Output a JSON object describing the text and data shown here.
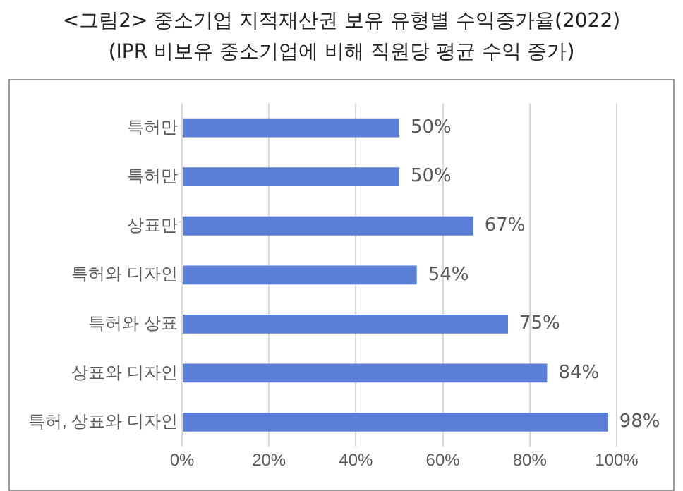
{
  "chart_data": {
    "type": "bar",
    "orientation": "horizontal",
    "title": "<그림2> 중소기업 지적재산권 보유 유형별 수익증가율(2022)",
    "subtitle": "(IPR 비보유 중소기업에 비해 직원당 평균 수익 증가)",
    "categories": [
      "특허만",
      "특허만",
      "상표만",
      "특허와 디자인",
      "특허와 상표",
      "상표와 디자인",
      "특허, 상표와 디자인"
    ],
    "values": [
      50,
      50,
      67,
      54,
      75,
      84,
      98
    ],
    "value_labels": [
      "50%",
      "50%",
      "67%",
      "54%",
      "75%",
      "84%",
      "98%"
    ],
    "color": "#5b7fd6",
    "xlim": [
      0,
      100
    ],
    "xticks": [
      {
        "value": 0,
        "label": "0%"
      },
      {
        "value": 20,
        "label": "20%"
      },
      {
        "value": 40,
        "label": "40%"
      },
      {
        "value": 60,
        "label": "60%"
      },
      {
        "value": 80,
        "label": "80%"
      },
      {
        "value": 100,
        "label": "100%"
      }
    ],
    "grid": "x",
    "legend": false
  }
}
